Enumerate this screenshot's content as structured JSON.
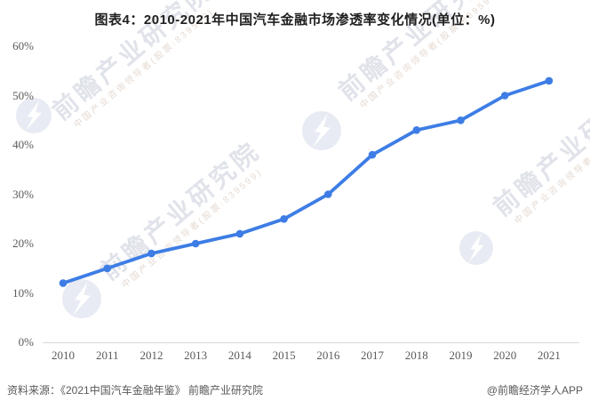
{
  "title": "图表4：2010-2021年中国汽车金融市场渗透率变化情况(单位：%)",
  "chart_data": {
    "type": "line",
    "title": "图表4：2010-2021年中国汽车金融市场渗透率变化情况(单位：%)",
    "categories": [
      "2010",
      "2011",
      "2012",
      "2013",
      "2014",
      "2015",
      "2016",
      "2017",
      "2018",
      "2019",
      "2020",
      "2021"
    ],
    "values": [
      12,
      15,
      18,
      20,
      22,
      25,
      30,
      38,
      43,
      45,
      50,
      53
    ],
    "unit": "%",
    "ylim": [
      0,
      60
    ],
    "yticks": [
      "0%",
      "10%",
      "20%",
      "30%",
      "40%",
      "50%",
      "60%"
    ],
    "grid": false,
    "legend": false,
    "baseline_only": true
  },
  "watermark": {
    "brand": "前瞻产业研究院",
    "tagline": "中国产业咨询领导者(股票:839599)"
  },
  "footer": {
    "source": "资料来源：《2021中国汽车金融年鉴》 前瞻产业研究院",
    "credit": "@前瞻经济学人APP"
  },
  "colors": {
    "line": "#3D7DE5",
    "axis_line": "#d9d9d9",
    "tick_text": "#595959",
    "title_text": "#1f1f1f",
    "footer_text": "#595959",
    "watermark_text": "#e1e3ea",
    "watermark_tagline": "#e6dad2",
    "watermark_logo": "#e8ebf3"
  }
}
